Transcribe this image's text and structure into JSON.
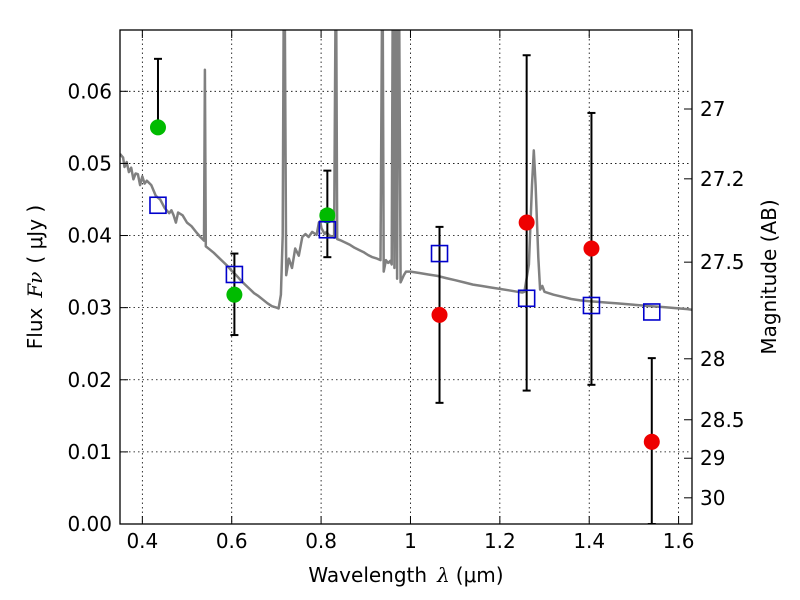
{
  "chart_data": {
    "type": "scatter",
    "title": "",
    "xlabel": {
      "text": "Wavelength",
      "symbol": "λ",
      "unit": "(μm)"
    },
    "ylabel": {
      "text": "Flux",
      "symbol": "Fν",
      "unit": "( μJy )"
    },
    "y2label": "Magnitude (AB)",
    "xlim": [
      0.35,
      1.63
    ],
    "ylim": [
      0.0,
      0.0685
    ],
    "grid": true,
    "legend": "none",
    "x_ticks": [
      {
        "value": 0.4,
        "label": "0.4"
      },
      {
        "value": 0.6,
        "label": "0.6"
      },
      {
        "value": 0.8,
        "label": "0.8"
      },
      {
        "value": 1.0,
        "label": "1"
      },
      {
        "value": 1.2,
        "label": "1.2"
      },
      {
        "value": 1.4,
        "label": "1.4"
      },
      {
        "value": 1.6,
        "label": "1.6"
      }
    ],
    "y_ticks": [
      {
        "value": 0.0,
        "label": "0.00"
      },
      {
        "value": 0.01,
        "label": "0.01"
      },
      {
        "value": 0.02,
        "label": "0.02"
      },
      {
        "value": 0.03,
        "label": "0.03"
      },
      {
        "value": 0.04,
        "label": "0.04"
      },
      {
        "value": 0.05,
        "label": "0.05"
      },
      {
        "value": 0.06,
        "label": "0.06"
      }
    ],
    "y2_ticks": [
      {
        "mag": 27,
        "label": "27"
      },
      {
        "mag": 27.2,
        "label": "27.2"
      },
      {
        "mag": 27.5,
        "label": "27.5"
      },
      {
        "mag": 28,
        "label": "28"
      },
      {
        "mag": 28.5,
        "label": "28.5"
      },
      {
        "mag": 29,
        "label": "29"
      },
      {
        "mag": 30,
        "label": "30"
      }
    ],
    "colors": {
      "model": "#808080",
      "green": "#00bb00",
      "red": "#ee0000",
      "blue": "#0000cc",
      "grid": "#000000",
      "errorbar": "#000000"
    },
    "series": [
      {
        "kind": "observed-flux",
        "color": "green",
        "points": [
          {
            "x": 0.435,
            "y": 0.055,
            "ylo": 0.055,
            "yhi": 0.0645
          },
          {
            "x": 0.606,
            "y": 0.0318,
            "ylo": 0.0262,
            "yhi": 0.0375
          },
          {
            "x": 0.814,
            "y": 0.0428,
            "ylo": 0.037,
            "yhi": 0.049
          }
        ]
      },
      {
        "kind": "observed-flux",
        "color": "red",
        "points": [
          {
            "x": 1.065,
            "y": 0.029,
            "ylo": 0.0168,
            "yhi": 0.0412
          },
          {
            "x": 1.26,
            "y": 0.0418,
            "ylo": 0.0185,
            "yhi": 0.065
          },
          {
            "x": 1.405,
            "y": 0.0382,
            "ylo": 0.0193,
            "yhi": 0.057
          },
          {
            "x": 1.54,
            "y": 0.0114,
            "ylo": 0.0,
            "yhi": 0.023
          }
        ]
      },
      {
        "kind": "model-bandpass-flux",
        "color": "blue",
        "marker": "square",
        "points": [
          {
            "x": 0.435,
            "y": 0.0442
          },
          {
            "x": 0.606,
            "y": 0.0346
          },
          {
            "x": 0.814,
            "y": 0.0408
          },
          {
            "x": 1.065,
            "y": 0.0375
          },
          {
            "x": 1.26,
            "y": 0.0313
          },
          {
            "x": 1.405,
            "y": 0.0303
          },
          {
            "x": 1.54,
            "y": 0.0294
          }
        ]
      },
      {
        "kind": "model-spectrum",
        "color": "model",
        "line": [
          [
            0.35,
            0.0513
          ],
          [
            0.357,
            0.0508
          ],
          [
            0.36,
            0.0495
          ],
          [
            0.365,
            0.0502
          ],
          [
            0.37,
            0.0488
          ],
          [
            0.375,
            0.0494
          ],
          [
            0.38,
            0.0478
          ],
          [
            0.385,
            0.0486
          ],
          [
            0.39,
            0.0485
          ],
          [
            0.395,
            0.047
          ],
          [
            0.4,
            0.0482
          ],
          [
            0.405,
            0.0472
          ],
          [
            0.41,
            0.0476
          ],
          [
            0.42,
            0.047
          ],
          [
            0.43,
            0.0455
          ],
          [
            0.44,
            0.045
          ],
          [
            0.45,
            0.0438
          ],
          [
            0.46,
            0.0431
          ],
          [
            0.465,
            0.0435
          ],
          [
            0.47,
            0.0428
          ],
          [
            0.475,
            0.0418
          ],
          [
            0.48,
            0.0432
          ],
          [
            0.49,
            0.0428
          ],
          [
            0.5,
            0.0418
          ],
          [
            0.51,
            0.0413
          ],
          [
            0.52,
            0.0405
          ],
          [
            0.53,
            0.0398
          ],
          [
            0.538,
            0.0393
          ],
          [
            0.54,
            0.063
          ],
          [
            0.542,
            0.0385
          ],
          [
            0.55,
            0.0381
          ],
          [
            0.56,
            0.0376
          ],
          [
            0.57,
            0.037
          ],
          [
            0.58,
            0.0364
          ],
          [
            0.59,
            0.0358
          ],
          [
            0.6,
            0.0351
          ],
          [
            0.61,
            0.0345
          ],
          [
            0.62,
            0.0338
          ],
          [
            0.63,
            0.0332
          ],
          [
            0.64,
            0.0326
          ],
          [
            0.65,
            0.032
          ],
          [
            0.66,
            0.0316
          ],
          [
            0.67,
            0.0311
          ],
          [
            0.68,
            0.0306
          ],
          [
            0.69,
            0.0302
          ],
          [
            0.7,
            0.03
          ],
          [
            0.705,
            0.0299
          ],
          [
            0.71,
            0.0318
          ],
          [
            0.714,
            0.04
          ],
          [
            0.716,
            0.0685
          ],
          [
            0.719,
            0.0685
          ],
          [
            0.722,
            0.0345
          ],
          [
            0.728,
            0.0368
          ],
          [
            0.735,
            0.0355
          ],
          [
            0.742,
            0.0382
          ],
          [
            0.75,
            0.0372
          ],
          [
            0.758,
            0.0398
          ],
          [
            0.765,
            0.0402
          ],
          [
            0.772,
            0.0398
          ],
          [
            0.78,
            0.0405
          ],
          [
            0.79,
            0.0401
          ],
          [
            0.795,
            0.0418
          ],
          [
            0.798,
            0.042
          ],
          [
            0.801,
            0.041
          ],
          [
            0.808,
            0.0402
          ],
          [
            0.812,
            0.0405
          ],
          [
            0.818,
            0.04
          ],
          [
            0.824,
            0.0399
          ],
          [
            0.829,
            0.0397
          ],
          [
            0.832,
            0.0685
          ],
          [
            0.834,
            0.0685
          ],
          [
            0.836,
            0.0395
          ],
          [
            0.845,
            0.0393
          ],
          [
            0.855,
            0.039
          ],
          [
            0.865,
            0.0387
          ],
          [
            0.875,
            0.0383
          ],
          [
            0.885,
            0.038
          ],
          [
            0.895,
            0.0377
          ],
          [
            0.905,
            0.0373
          ],
          [
            0.915,
            0.037
          ],
          [
            0.925,
            0.0368
          ],
          [
            0.933,
            0.0366
          ],
          [
            0.936,
            0.0685
          ],
          [
            0.938,
            0.0685
          ],
          [
            0.94,
            0.035
          ],
          [
            0.945,
            0.0366
          ],
          [
            0.95,
            0.0362
          ],
          [
            0.955,
            0.0365
          ],
          [
            0.958,
            0.036
          ],
          [
            0.96,
            0.0685
          ],
          [
            0.962,
            0.0685
          ],
          [
            0.964,
            0.0355
          ],
          [
            0.966,
            0.0685
          ],
          [
            0.968,
            0.0685
          ],
          [
            0.97,
            0.034
          ],
          [
            0.972,
            0.0685
          ],
          [
            0.975,
            0.0685
          ],
          [
            0.978,
            0.0335
          ],
          [
            0.985,
            0.0345
          ],
          [
            0.99,
            0.035
          ],
          [
            1.0,
            0.035
          ],
          [
            1.02,
            0.0348
          ],
          [
            1.04,
            0.0346
          ],
          [
            1.06,
            0.0344
          ],
          [
            1.08,
            0.0341
          ],
          [
            1.1,
            0.0338
          ],
          [
            1.12,
            0.0335
          ],
          [
            1.14,
            0.0332
          ],
          [
            1.16,
            0.033
          ],
          [
            1.18,
            0.0328
          ],
          [
            1.2,
            0.0326
          ],
          [
            1.22,
            0.0324
          ],
          [
            1.24,
            0.0322
          ],
          [
            1.25,
            0.0321
          ],
          [
            1.255,
            0.0322
          ],
          [
            1.265,
            0.036
          ],
          [
            1.272,
            0.047
          ],
          [
            1.276,
            0.0518
          ],
          [
            1.28,
            0.047
          ],
          [
            1.286,
            0.037
          ],
          [
            1.29,
            0.0325
          ],
          [
            1.295,
            0.033
          ],
          [
            1.3,
            0.0322
          ],
          [
            1.32,
            0.0318
          ],
          [
            1.34,
            0.0315
          ],
          [
            1.36,
            0.0312
          ],
          [
            1.38,
            0.031
          ],
          [
            1.4,
            0.0309
          ],
          [
            1.42,
            0.0308
          ],
          [
            1.44,
            0.0307
          ],
          [
            1.46,
            0.0306
          ],
          [
            1.48,
            0.0305
          ],
          [
            1.5,
            0.0304
          ],
          [
            1.52,
            0.0303
          ],
          [
            1.54,
            0.0302
          ],
          [
            1.56,
            0.0301
          ],
          [
            1.58,
            0.03
          ],
          [
            1.6,
            0.0299
          ],
          [
            1.62,
            0.0298
          ],
          [
            1.63,
            0.0297
          ]
        ]
      }
    ]
  }
}
